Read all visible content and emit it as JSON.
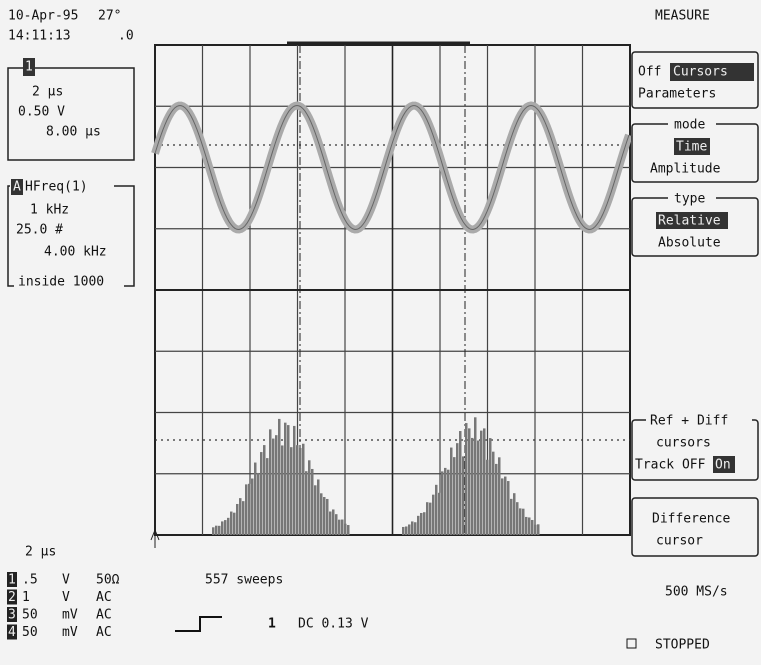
{
  "header": {
    "date": "10-Apr-95",
    "temp": "27°",
    "time": "14:11:13",
    "frac": ".0"
  },
  "timebase_box": {
    "channel": "1",
    "lines": [
      "2 µs",
      "0.50 V",
      "8.00 µs"
    ]
  },
  "function_box": {
    "channel": "A",
    "title": "HFreq(1)",
    "lines": [
      "1 kHz",
      "25.0 #",
      "4.00 kHz"
    ],
    "footer": "inside 1000"
  },
  "timebase": "2 µs",
  "channels": [
    {
      "num": "1",
      "scale": ".5",
      "unit": "V",
      "coupling": "50Ω"
    },
    {
      "num": "2",
      "scale": "1",
      "unit": "V",
      "coupling": "AC"
    },
    {
      "num": "3",
      "scale": "50",
      "unit": "mV",
      "coupling": "AC"
    },
    {
      "num": "4",
      "scale": "50",
      "unit": "mV",
      "coupling": "AC"
    }
  ],
  "status": {
    "sweeps": "557 sweeps",
    "trigger_channel": "1",
    "trigger": "DC 0.13 V",
    "sample_rate": "500 MS/s",
    "state": "STOPPED"
  },
  "menu": {
    "title": "MEASURE",
    "display": {
      "off": "Off",
      "cursors": "Cursors",
      "parameters": "Parameters"
    },
    "mode": {
      "label": "mode",
      "time": "Time",
      "amplitude": "Amplitude"
    },
    "type": {
      "label": "type",
      "relative": "Relative",
      "absolute": "Absolute"
    },
    "ref_diff": {
      "label": "Ref + Diff",
      "line": "cursors",
      "track": "Track OFF",
      "on": "On"
    },
    "difference": {
      "line1": "Difference",
      "line2": "cursor"
    }
  }
}
